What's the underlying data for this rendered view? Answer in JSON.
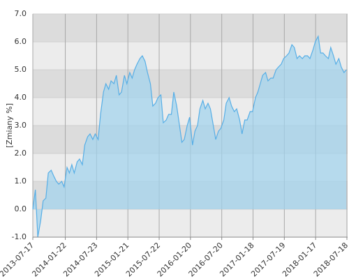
{
  "chart_data": {
    "type": "area",
    "y_label": "[Zmiany %]",
    "color": "#56aee6",
    "fill": "#9fd3ee",
    "grid": true,
    "ylim": [
      -1,
      7
    ],
    "yticks": [
      {
        "value": -1,
        "label": "-1.0"
      },
      {
        "value": 0,
        "label": "0.0"
      },
      {
        "value": 1,
        "label": "1.0"
      },
      {
        "value": 2,
        "label": "2.0"
      },
      {
        "value": 3,
        "label": "3.0"
      },
      {
        "value": 4,
        "label": "4.0"
      },
      {
        "value": 5,
        "label": "5.0"
      },
      {
        "value": 6,
        "label": "6.0"
      },
      {
        "value": 7,
        "label": "7.0"
      }
    ],
    "xlim": [
      "2013-07-17",
      "2018-07-18"
    ],
    "xticks": [
      "2013-07-17",
      "2014-01-22",
      "2014-07-23",
      "2015-01-21",
      "2015-07-22",
      "2016-01-20",
      "2016-07-20",
      "2017-01-18",
      "2017-07-19",
      "2018-01-17",
      "2018-07-18"
    ],
    "x": [
      "2013-07-17",
      "2013-08-01",
      "2013-08-15",
      "2013-09-01",
      "2013-09-15",
      "2013-10-01",
      "2013-10-15",
      "2013-11-01",
      "2013-11-15",
      "2013-12-01",
      "2013-12-15",
      "2014-01-01",
      "2014-01-15",
      "2014-02-01",
      "2014-02-15",
      "2014-03-01",
      "2014-03-15",
      "2014-04-01",
      "2014-04-15",
      "2014-05-01",
      "2014-05-15",
      "2014-06-01",
      "2014-06-15",
      "2014-07-01",
      "2014-07-15",
      "2014-08-01",
      "2014-08-15",
      "2014-09-01",
      "2014-09-15",
      "2014-10-01",
      "2014-10-15",
      "2014-11-01",
      "2014-11-15",
      "2014-12-01",
      "2014-12-15",
      "2015-01-01",
      "2015-01-15",
      "2015-02-01",
      "2015-02-15",
      "2015-03-01",
      "2015-03-15",
      "2015-04-01",
      "2015-04-15",
      "2015-05-01",
      "2015-05-15",
      "2015-06-01",
      "2015-06-15",
      "2015-07-01",
      "2015-07-15",
      "2015-08-01",
      "2015-08-15",
      "2015-09-01",
      "2015-09-15",
      "2015-10-01",
      "2015-10-15",
      "2015-11-01",
      "2015-11-15",
      "2015-12-01",
      "2015-12-15",
      "2016-01-01",
      "2016-01-15",
      "2016-02-01",
      "2016-02-15",
      "2016-03-01",
      "2016-03-15",
      "2016-04-01",
      "2016-04-15",
      "2016-05-01",
      "2016-05-15",
      "2016-06-01",
      "2016-06-15",
      "2016-07-01",
      "2016-07-15",
      "2016-08-01",
      "2016-08-15",
      "2016-09-01",
      "2016-09-15",
      "2016-10-01",
      "2016-10-15",
      "2016-11-01",
      "2016-11-15",
      "2016-12-01",
      "2016-12-15",
      "2017-01-01",
      "2017-01-15",
      "2017-02-01",
      "2017-02-15",
      "2017-03-01",
      "2017-03-15",
      "2017-04-01",
      "2017-04-15",
      "2017-05-01",
      "2017-05-15",
      "2017-06-01",
      "2017-06-15",
      "2017-07-01",
      "2017-07-15",
      "2017-08-01",
      "2017-08-15",
      "2017-09-01",
      "2017-09-15",
      "2017-10-01",
      "2017-10-15",
      "2017-11-01",
      "2017-11-15",
      "2017-12-01",
      "2017-12-15",
      "2018-01-01",
      "2018-01-15",
      "2018-02-01",
      "2018-02-15",
      "2018-03-01",
      "2018-03-15",
      "2018-04-01",
      "2018-04-15",
      "2018-05-01",
      "2018-05-15",
      "2018-06-01",
      "2018-06-15",
      "2018-07-01",
      "2018-07-15"
    ],
    "values": [
      0.0,
      0.7,
      -1.0,
      -0.4,
      0.3,
      0.4,
      1.3,
      1.4,
      1.2,
      1.0,
      0.9,
      1.0,
      0.8,
      1.5,
      1.3,
      1.6,
      1.3,
      1.7,
      1.8,
      1.6,
      2.3,
      2.6,
      2.7,
      2.5,
      2.7,
      2.5,
      3.4,
      4.2,
      4.5,
      4.3,
      4.6,
      4.5,
      4.8,
      4.1,
      4.2,
      4.8,
      4.5,
      4.9,
      4.7,
      5.0,
      5.2,
      5.4,
      5.5,
      5.3,
      4.9,
      4.5,
      3.7,
      3.8,
      4.0,
      4.1,
      3.1,
      3.2,
      3.4,
      3.4,
      4.2,
      3.7,
      3.1,
      2.4,
      2.5,
      3.0,
      3.3,
      2.3,
      2.8,
      3.0,
      3.6,
      3.9,
      3.6,
      3.8,
      3.6,
      3.0,
      2.5,
      2.8,
      2.9,
      3.2,
      3.8,
      4.0,
      3.7,
      3.5,
      3.6,
      3.2,
      2.7,
      3.2,
      3.2,
      3.5,
      3.5,
      4.0,
      4.2,
      4.5,
      4.8,
      4.9,
      4.6,
      4.7,
      4.7,
      5.0,
      5.1,
      5.2,
      5.4,
      5.5,
      5.6,
      5.9,
      5.8,
      5.4,
      5.5,
      5.4,
      5.5,
      5.5,
      5.4,
      5.7,
      6.0,
      6.2,
      5.6,
      5.6,
      5.5,
      5.4,
      5.8,
      5.5,
      5.2,
      5.4,
      5.1,
      4.9,
      5.0
    ]
  }
}
